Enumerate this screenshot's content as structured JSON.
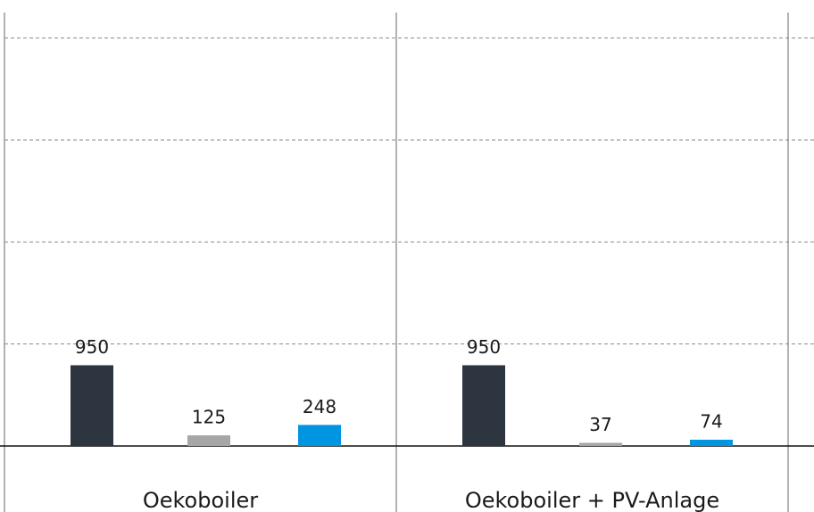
{
  "chart_data": {
    "type": "bar",
    "categories": [
      "Oekoboiler",
      "Oekoboiler + PV-Anlage"
    ],
    "series": [
      {
        "color": "#2d3640",
        "values": [
          950,
          950
        ]
      },
      {
        "color": "#a6a6a6",
        "values": [
          125,
          37
        ]
      },
      {
        "color": "#0095e0",
        "values": [
          248,
          74
        ]
      }
    ],
    "ylim": [
      0,
      5100
    ],
    "yticks": [
      0,
      1200,
      2400,
      3600,
      4800
    ],
    "grid": true
  }
}
